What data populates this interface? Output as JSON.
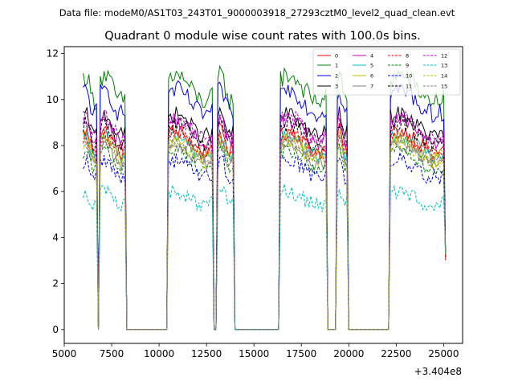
{
  "chart_data": {
    "type": "line",
    "suptitle": "Data file: modeM0/AS1T03_243T01_9000003918_27293cztM0_level2_quad_clean.evt",
    "title": "Quadrant 0 module wise count rates with 100.0s bins.",
    "xlabel": "",
    "ylabel": "",
    "x_offset_label": "+3.404e8",
    "xlim": [
      5000,
      26000
    ],
    "ylim": [
      -0.6,
      12.3
    ],
    "xticks": [
      5000,
      7500,
      10000,
      12500,
      15000,
      17500,
      20000,
      22500,
      25000
    ],
    "xtick_labels": [
      "5000",
      "7500",
      "10000",
      "12500",
      "15000",
      "17500",
      "20000",
      "22500",
      "25000"
    ],
    "yticks": [
      0,
      2,
      4,
      6,
      8,
      10,
      12
    ],
    "ytick_labels": [
      "0",
      "2",
      "4",
      "6",
      "8",
      "10",
      "12"
    ],
    "bin_size_s": 100,
    "x_start": 6000,
    "x_end": 25100,
    "on_intervals": [
      [
        6000,
        6700
      ],
      [
        6900,
        8200
      ],
      [
        10500,
        12800
      ],
      [
        13100,
        13900
      ],
      [
        16400,
        18800
      ],
      [
        19400,
        19900
      ],
      [
        22200,
        25000
      ]
    ],
    "series": [
      {
        "name": "0",
        "color": "#ff0000",
        "dash": "solid",
        "base": 8.2,
        "noise": 0.35
      },
      {
        "name": "1",
        "color": "#008000",
        "dash": "solid",
        "base": 10.5,
        "noise": 0.45
      },
      {
        "name": "2",
        "color": "#0000ff",
        "dash": "solid",
        "base": 9.9,
        "noise": 0.4
      },
      {
        "name": "3",
        "color": "#000000",
        "dash": "solid",
        "base": 8.9,
        "noise": 0.35
      },
      {
        "name": "4",
        "color": "#bf00bf",
        "dash": "solid",
        "base": 8.6,
        "noise": 0.35
      },
      {
        "name": "5",
        "color": "#00bfbf",
        "dash": "solid",
        "base": 8.0,
        "noise": 0.3
      },
      {
        "name": "6",
        "color": "#bfbf00",
        "dash": "solid",
        "base": 7.9,
        "noise": 0.3
      },
      {
        "name": "7",
        "color": "#808080",
        "dash": "solid",
        "base": 7.6,
        "noise": 0.3
      },
      {
        "name": "8",
        "color": "#ff0000",
        "dash": "dashed",
        "base": 8.1,
        "noise": 0.35
      },
      {
        "name": "9",
        "color": "#008000",
        "dash": "dashed",
        "base": 7.4,
        "noise": 0.3
      },
      {
        "name": "10",
        "color": "#0000ff",
        "dash": "dashed",
        "base": 7.0,
        "noise": 0.35
      },
      {
        "name": "11",
        "color": "#000000",
        "dash": "dashed",
        "base": 8.5,
        "noise": 0.35
      },
      {
        "name": "12",
        "color": "#bf00bf",
        "dash": "dashed",
        "base": 8.8,
        "noise": 0.35
      },
      {
        "name": "13",
        "color": "#00bfbf",
        "dash": "dashed",
        "base": 5.7,
        "noise": 0.35
      },
      {
        "name": "14",
        "color": "#bfbf00",
        "dash": "dashed",
        "base": 7.7,
        "noise": 0.3
      },
      {
        "name": "15",
        "color": "#808080",
        "dash": "dashed",
        "base": 7.8,
        "noise": 0.3
      }
    ],
    "legend_position": "top-right",
    "legend_columns": 4,
    "grid": false
  }
}
